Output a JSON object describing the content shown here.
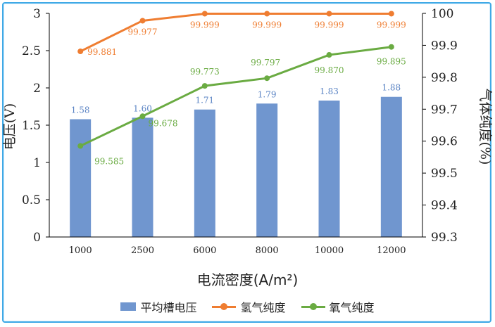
{
  "chart_data": {
    "type": "bar+line",
    "categories": [
      "1000",
      "2500",
      "6000",
      "8000",
      "10000",
      "12000"
    ],
    "xlabel": "电流密度(A/m²)",
    "ylabel_left": "电压(V)",
    "ylabel_right": "气体纯度(%)",
    "ylim_left": [
      0,
      3
    ],
    "yticks_left": [
      "0",
      "0.5",
      "1",
      "1.5",
      "2",
      "2.5",
      "3"
    ],
    "ylim_right": [
      99.3,
      100
    ],
    "yticks_right": [
      "99.3",
      "99.4",
      "99.5",
      "99.6",
      "99.7",
      "99.8",
      "99.9",
      "100"
    ],
    "series": [
      {
        "name": "平均槽电压",
        "kind": "bar",
        "axis": "left",
        "color": "#7096cf",
        "label_color": "#5b84c4",
        "values": [
          1.58,
          1.6,
          1.71,
          1.79,
          1.83,
          1.88
        ],
        "labels": [
          "1.58",
          "1.60",
          "1.71",
          "1.79",
          "1.83",
          "1.88"
        ]
      },
      {
        "name": "氢气纯度",
        "kind": "line",
        "axis": "right",
        "color": "#ef7d31",
        "values": [
          99.881,
          99.977,
          99.999,
          99.999,
          99.999,
          99.999
        ],
        "labels": [
          "99.881",
          "99.977",
          "99.999",
          "99.999",
          "99.999",
          "99.999"
        ]
      },
      {
        "name": "氧气纯度",
        "kind": "line",
        "axis": "right",
        "color": "#6aab42",
        "values": [
          99.585,
          99.678,
          99.773,
          99.797,
          99.87,
          99.895
        ],
        "labels": [
          "99.585",
          "99.678",
          "99.773",
          "99.797",
          "99.870",
          "99.895"
        ]
      }
    ],
    "grid": false,
    "legend_position": "bottom"
  }
}
